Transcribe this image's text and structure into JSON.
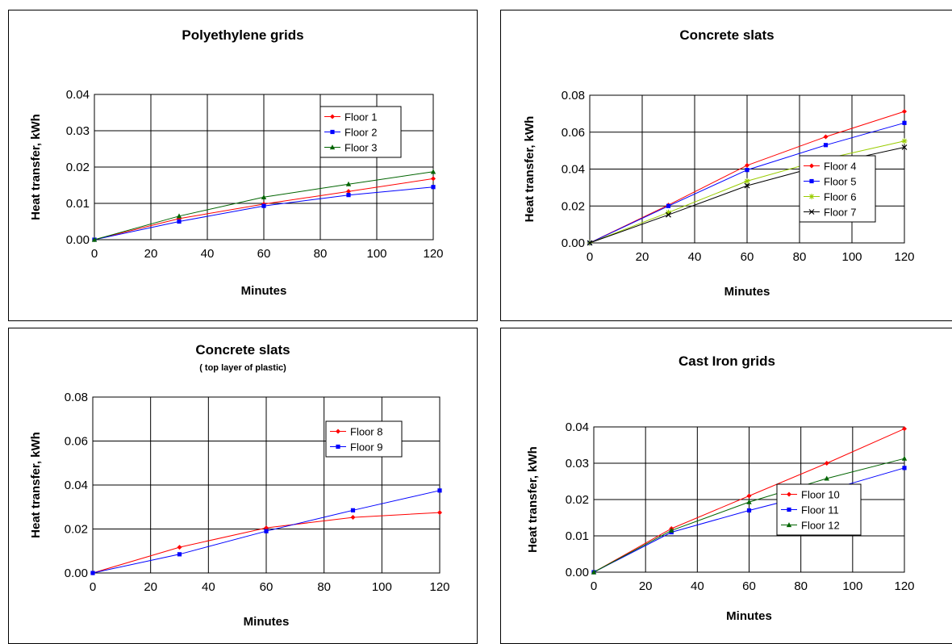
{
  "chart_data": [
    {
      "type": "line",
      "title": "Polyethylene grids",
      "subtitle": "",
      "xlabel": "Minutes",
      "ylabel": "Heat transfer, kWh",
      "xlim": [
        0,
        120
      ],
      "xticks": [
        "0",
        "20",
        "40",
        "60",
        "80",
        "100",
        "120"
      ],
      "ylim": [
        0,
        0.04
      ],
      "yticks": [
        "0.00",
        "0.01",
        "0.02",
        "0.03",
        "0.04"
      ],
      "grid": true,
      "legend_position": "top-right",
      "x": [
        0,
        30,
        60,
        90,
        120
      ],
      "series": [
        {
          "name": "Floor 1",
          "color": "#ff0000",
          "marker": "diamond",
          "values": [
            0,
            0.0058,
            0.0098,
            0.0133,
            0.0168
          ]
        },
        {
          "name": "Floor 2",
          "color": "#0000ff",
          "marker": "square",
          "values": [
            0,
            0.005,
            0.0093,
            0.0123,
            0.0145
          ]
        },
        {
          "name": "Floor 3",
          "color": "#006400",
          "marker": "triangle",
          "values": [
            0,
            0.0065,
            0.0117,
            0.0153,
            0.0187
          ]
        }
      ]
    },
    {
      "type": "line",
      "title": "Concrete slats",
      "subtitle": "",
      "xlabel": "Minutes",
      "ylabel": "Heat transfer, kWh",
      "xlim": [
        0,
        120
      ],
      "xticks": [
        "0",
        "20",
        "40",
        "60",
        "80",
        "100",
        "120"
      ],
      "ylim": [
        0,
        0.08
      ],
      "yticks": [
        "0.00",
        "0.02",
        "0.04",
        "0.06",
        "0.08"
      ],
      "grid": true,
      "legend_position": "center-right",
      "x": [
        0,
        30,
        60,
        90,
        120
      ],
      "series": [
        {
          "name": "Floor 4",
          "color": "#ff0000",
          "marker": "diamond",
          "values": [
            0,
            0.0205,
            0.042,
            0.0575,
            0.0712
          ]
        },
        {
          "name": "Floor 5",
          "color": "#0000ff",
          "marker": "square",
          "values": [
            0,
            0.02,
            0.0395,
            0.053,
            0.065
          ]
        },
        {
          "name": "Floor 6",
          "color": "#99cc00",
          "marker": "star",
          "values": [
            0,
            0.0165,
            0.0335,
            0.0455,
            0.0552
          ]
        },
        {
          "name": "Floor 7",
          "color": "#000000",
          "marker": "x",
          "values": [
            0,
            0.0152,
            0.031,
            0.0425,
            0.0518
          ]
        }
      ]
    },
    {
      "type": "line",
      "title": "Concrete slats",
      "subtitle": "( top layer of plastic)",
      "xlabel": "Minutes",
      "ylabel": "Heat transfer, kWh",
      "xlim": [
        0,
        120
      ],
      "xticks": [
        "0",
        "20",
        "40",
        "60",
        "80",
        "100",
        "120"
      ],
      "ylim": [
        0,
        0.08
      ],
      "yticks": [
        "0.00",
        "0.02",
        "0.04",
        "0.06",
        "0.08"
      ],
      "grid": true,
      "legend_position": "top-right",
      "x": [
        0,
        30,
        60,
        90,
        120
      ],
      "series": [
        {
          "name": "Floor 8",
          "color": "#ff0000",
          "marker": "diamond",
          "values": [
            0,
            0.0117,
            0.0205,
            0.0253,
            0.0275
          ]
        },
        {
          "name": "Floor 9",
          "color": "#0000ff",
          "marker": "square",
          "values": [
            0,
            0.0085,
            0.019,
            0.0285,
            0.0375
          ]
        }
      ]
    },
    {
      "type": "line",
      "title": "Cast Iron grids",
      "subtitle": "",
      "xlabel": "Minutes",
      "ylabel": "Heat transfer, kWh",
      "xlim": [
        0,
        120
      ],
      "xticks": [
        "0",
        "20",
        "40",
        "60",
        "80",
        "100",
        "120"
      ],
      "ylim": [
        0,
        0.04
      ],
      "yticks": [
        "0.00",
        "0.01",
        "0.02",
        "0.03",
        "0.04"
      ],
      "grid": true,
      "legend_position": "center",
      "x": [
        0,
        30,
        60,
        90,
        120
      ],
      "series": [
        {
          "name": "Floor 10",
          "color": "#ff0000",
          "marker": "diamond",
          "values": [
            0,
            0.012,
            0.021,
            0.03,
            0.0395
          ]
        },
        {
          "name": "Floor 11",
          "color": "#0000ff",
          "marker": "square",
          "values": [
            0,
            0.011,
            0.017,
            0.0225,
            0.0287
          ]
        },
        {
          "name": "Floor 12",
          "color": "#006400",
          "marker": "triangle",
          "values": [
            0,
            0.0115,
            0.0193,
            0.0258,
            0.0313
          ]
        }
      ]
    }
  ]
}
